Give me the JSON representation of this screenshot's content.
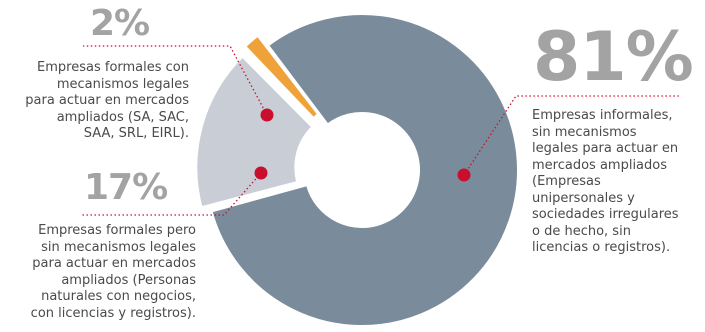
{
  "chart_data": {
    "type": "pie",
    "variant": "donut",
    "slices": [
      {
        "value": 81,
        "label": "81%",
        "color": "#7a8c9b",
        "description": [
          "Empresas informales,",
          "sin mecanismos",
          "legales para actuar en",
          "mercados ampliados",
          "(Empresas",
          "unipersonales y",
          "sociedades irregulares",
          "o de hecho, sin",
          "licencias o registros)."
        ]
      },
      {
        "value": 17,
        "label": "17%",
        "color": "#c9ced6",
        "description": [
          "Empresas formales pero",
          "sin mecanismos legales",
          "para actuar en mercados",
          "ampliados (Personas",
          "naturales con negocios,",
          "con licencias y registros)."
        ]
      },
      {
        "value": 2,
        "label": "2%",
        "color": "#f0a23a",
        "description": [
          "Empresas formales con",
          "mecanismos legales",
          "para actuar en mercados",
          "ampliados (SA, SAC,",
          "SAA, SRL, EIRL)."
        ]
      }
    ],
    "marker_color": "#c8102e"
  }
}
